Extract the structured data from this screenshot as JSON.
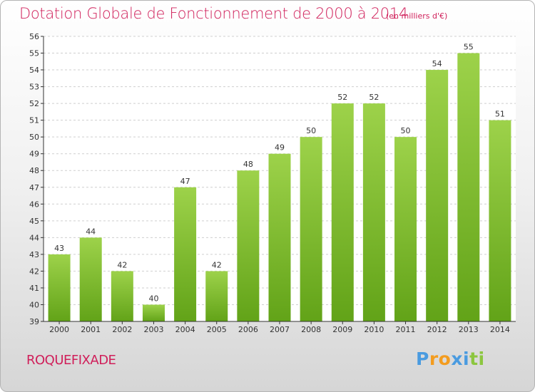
{
  "title": "Dotation Globale de Fonctionnement de 2000 à 2014",
  "unit_note": "(en milliers d'€)",
  "commune": "ROQUEFIXADE",
  "logo": {
    "text": "Proxiti",
    "colors": [
      "#4a9be0",
      "#f39c1f",
      "#f39c1f",
      "#4a9be0",
      "#4a9be0",
      "#8cc63f",
      "#8cc63f"
    ]
  },
  "colors": {
    "title": "#d01f5a",
    "bar_light": "#9dd24a",
    "bar_dark": "#62a318",
    "grid": "#cfcfcf",
    "axis": "#333333"
  },
  "chart_data": {
    "type": "bar",
    "categories": [
      "2000",
      "2001",
      "2002",
      "2003",
      "2004",
      "2005",
      "2006",
      "2007",
      "2008",
      "2009",
      "2010",
      "2011",
      "2012",
      "2013",
      "2014"
    ],
    "values": [
      43,
      44,
      42,
      40,
      47,
      42,
      48,
      49,
      50,
      52,
      52,
      50,
      54,
      55,
      51
    ],
    "ylim": [
      39,
      56
    ],
    "yticks": [
      39,
      40,
      41,
      42,
      43,
      44,
      45,
      46,
      47,
      48,
      49,
      50,
      51,
      52,
      53,
      54,
      55,
      56
    ],
    "grid": true,
    "data_labels": true
  }
}
